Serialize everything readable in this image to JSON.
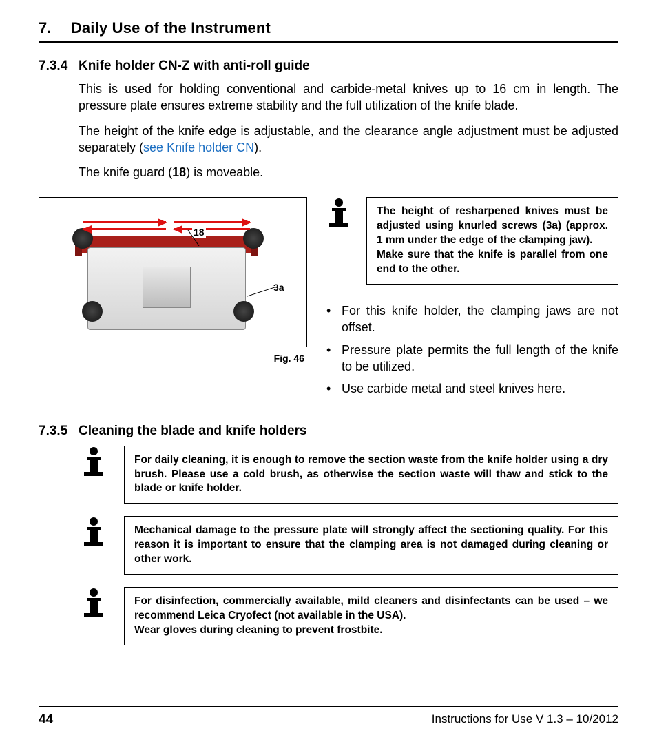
{
  "chapter": {
    "number": "7.",
    "title": "Daily Use of the Instrument"
  },
  "section734": {
    "num": "7.3.4",
    "title": "Knife holder CN-Z with anti-roll guide",
    "p1": "This is used for holding conventional and carbide-metal knives up to 16 cm in length. The pressure plate ensures extreme stability and the full utilization of the knife blade.",
    "p2a": "The height of the knife edge is adjustable, and the clearance angle adjustment must be adjusted separately (",
    "p2link": "see Knife holder CN",
    "p2b": ").",
    "p3a": "The knife guard (",
    "p3bold": "18",
    "p3b": ") is moveable."
  },
  "figure": {
    "label18": "18",
    "label3a": "3a",
    "caption": "Fig. 46"
  },
  "noteTop": {
    "l1": "The height of resharpened knives must be adjusted using knurled screws (3a) (approx. 1 mm under the edge of the clamping jaw).",
    "l2": "Make sure that the knife is parallel from one end to the other."
  },
  "bullets": {
    "b1": "For this knife holder, the clamping jaws are not offset.",
    "b2": "Pressure plate permits the full length of the knife to be utilized.",
    "b3": "Use carbide metal and steel knives here."
  },
  "section735": {
    "num": "7.3.5",
    "title": "Cleaning the blade and knife holders"
  },
  "noteA": "For daily cleaning, it is enough to remove the section waste from the knife holder using a dry brush. Please use a cold brush, as otherwise the section waste will thaw and stick to the blade or knife holder.",
  "noteB": "Mechanical damage to the pressure plate will strongly affect the sectioning quality. For this reason it is important to ensure that the clamping area is not damaged during cleaning or other work.",
  "noteC": {
    "l1": "For disinfection, commercially available, mild cleaners and disinfectants can be used – we recommend Leica Cryofect (not available in the USA).",
    "l2": "Wear gloves during cleaning to prevent frostbite."
  },
  "footer": {
    "page": "44",
    "doc": "Instructions for Use V 1.3 – 10/2012"
  }
}
